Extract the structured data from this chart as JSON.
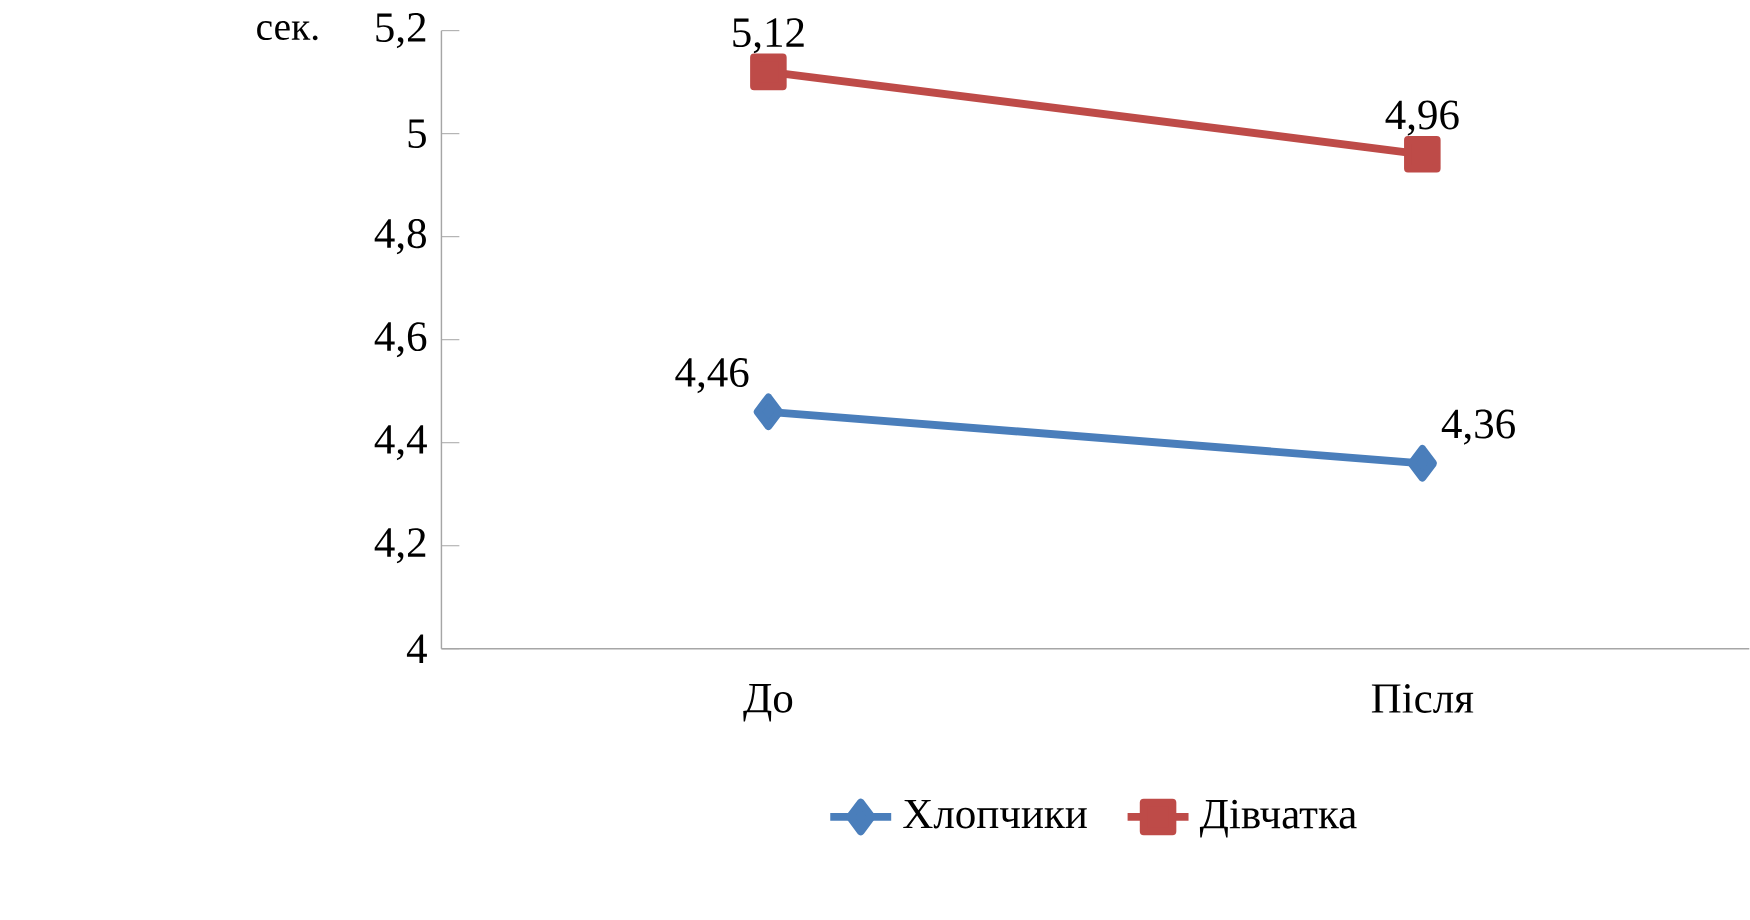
{
  "chart_data": {
    "type": "line",
    "ylabel": "сек.",
    "categories": [
      "До",
      "Після"
    ],
    "series": [
      {
        "name": "Хлопчики",
        "color": "#4a7ebb",
        "marker": "diamond",
        "values": [
          4.46,
          4.36
        ],
        "value_labels": [
          "4,46",
          "4,36"
        ]
      },
      {
        "name": "Дівчатка",
        "color": "#be4b48",
        "marker": "square",
        "values": [
          5.12,
          4.96
        ],
        "value_labels": [
          "5,12",
          "4,96"
        ]
      }
    ],
    "ylim": [
      4,
      5.2
    ],
    "yticks": [
      4,
      {
        "value": 4.2,
        "label": "4,2"
      },
      {
        "value": 4.4,
        "label": "4,4"
      },
      {
        "value": 4.6,
        "label": "4,6"
      },
      {
        "value": 4.8,
        "label": "4,8"
      },
      5,
      {
        "value": 5.2,
        "label": "5,2"
      }
    ],
    "grid": false,
    "legend": "bottom",
    "line_style": "solid"
  }
}
